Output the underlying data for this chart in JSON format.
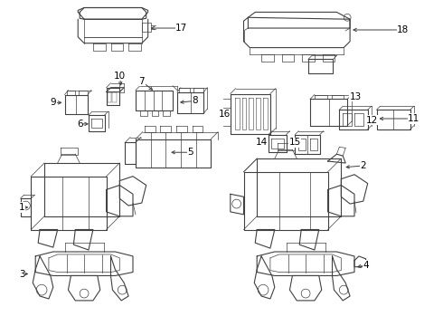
{
  "bg_color": "#ffffff",
  "line_color": "#404040",
  "label_color": "#000000",
  "fig_width": 4.9,
  "fig_height": 3.6,
  "dpi": 100
}
